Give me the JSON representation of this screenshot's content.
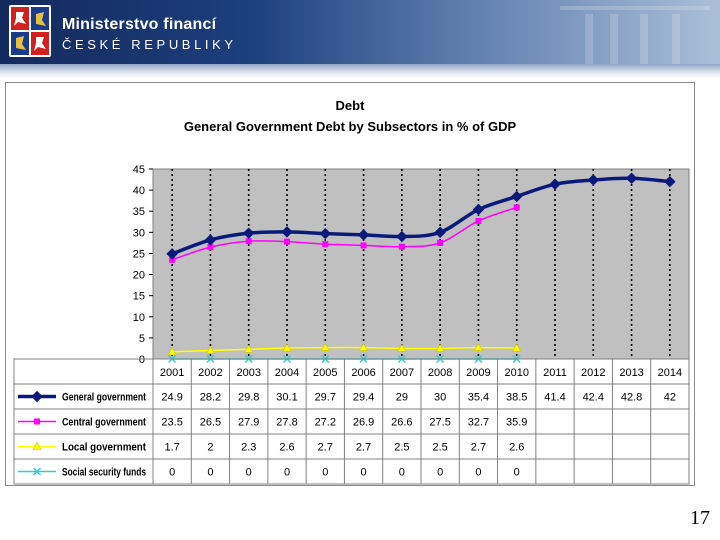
{
  "header": {
    "ministry": "Ministerstvo financí",
    "republic": "ČESKÉ REPUBLIKY"
  },
  "page_number": "17",
  "colors": {
    "general": "#0a1a7a",
    "central": "#ff00ff",
    "local": "#ffff00",
    "social": "#33cccc",
    "plot_bg": "#c0c0c0"
  },
  "chart_data": {
    "type": "line",
    "title": "Debt",
    "subtitle": "General Government Debt by Subsectors in % of GDP",
    "xlabel": "",
    "ylabel": "",
    "ylim": [
      0,
      45
    ],
    "yticks": [
      "0",
      "5",
      "10",
      "15",
      "20",
      "25",
      "30",
      "35",
      "40",
      "45"
    ],
    "categories": [
      "2001",
      "2002",
      "2003",
      "2004",
      "2005",
      "2006",
      "2007",
      "2008",
      "2009",
      "2010",
      "2011",
      "2012",
      "2013",
      "2014"
    ],
    "grid": "dotted vertical lines",
    "legend": "table below chart",
    "series": [
      {
        "name": "General government",
        "marker": "diamond",
        "color": "#0a1a7a",
        "values": [
          24.9,
          28.2,
          29.8,
          30.1,
          29.7,
          29.4,
          29,
          30,
          35.4,
          38.5,
          41.4,
          42.4,
          42.8,
          42
        ],
        "labels": [
          "24.9",
          "28.2",
          "29.8",
          "30.1",
          "29.7",
          "29.4",
          "29",
          "30",
          "35.4",
          "38.5",
          "41.4",
          "42.4",
          "42.8",
          "42"
        ]
      },
      {
        "name": "Central government",
        "marker": "square",
        "color": "#ff00ff",
        "values": [
          23.5,
          26.5,
          27.9,
          27.8,
          27.2,
          26.9,
          26.6,
          27.5,
          32.7,
          35.9,
          null,
          null,
          null,
          null
        ],
        "labels": [
          "23.5",
          "26.5",
          "27.9",
          "27.8",
          "27.2",
          "26.9",
          "26.6",
          "27.5",
          "32.7",
          "35.9",
          "",
          "",
          "",
          ""
        ]
      },
      {
        "name": "Local government",
        "marker": "triangle",
        "color": "#ffff00",
        "values": [
          1.7,
          2,
          2.3,
          2.6,
          2.7,
          2.7,
          2.5,
          2.5,
          2.7,
          2.6,
          null,
          null,
          null,
          null
        ],
        "labels": [
          "1.7",
          "2",
          "2.3",
          "2.6",
          "2.7",
          "2.7",
          "2.5",
          "2.5",
          "2.7",
          "2.6",
          "",
          "",
          "",
          ""
        ]
      },
      {
        "name": "Social security funds",
        "marker": "x",
        "color": "#33cccc",
        "values": [
          0,
          0,
          0,
          0,
          0,
          0,
          0,
          0,
          0,
          0,
          null,
          null,
          null,
          null
        ],
        "labels": [
          "0",
          "0",
          "0",
          "0",
          "0",
          "0",
          "0",
          "0",
          "0",
          "0",
          "",
          "",
          "",
          ""
        ]
      }
    ]
  }
}
